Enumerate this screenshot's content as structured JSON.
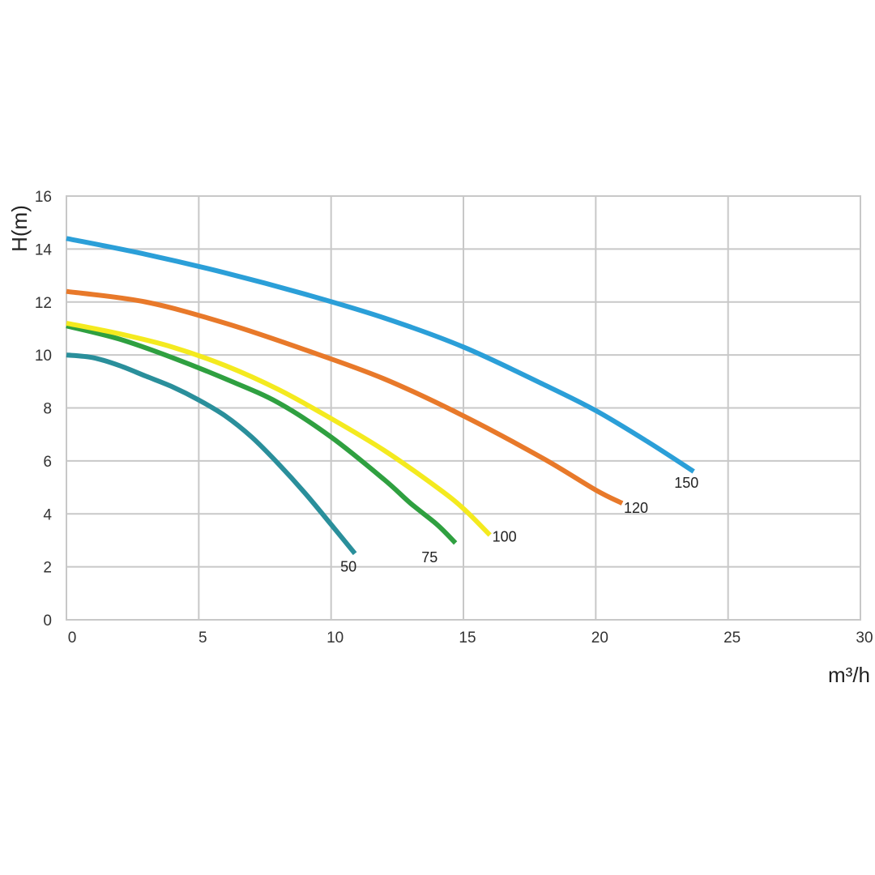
{
  "chart_data": {
    "type": "line",
    "xlabel": "m³/h",
    "ylabel": "H(m)",
    "xlim": [
      0,
      30
    ],
    "ylim": [
      0,
      16
    ],
    "xticks": [
      "0",
      "5",
      "10",
      "15",
      "20",
      "25",
      "30"
    ],
    "yticks": [
      "0",
      "2",
      "4",
      "6",
      "8",
      "10",
      "12",
      "14",
      "16"
    ],
    "grid": true,
    "series": [
      {
        "name": "50",
        "color": "#2a8f9b",
        "x": [
          0,
          1,
          2,
          3,
          4,
          5,
          6,
          7,
          8,
          9,
          10,
          10.9
        ],
        "y": [
          10.0,
          9.9,
          9.6,
          9.2,
          8.8,
          8.3,
          7.7,
          6.9,
          5.9,
          4.8,
          3.6,
          2.5
        ]
      },
      {
        "name": "75",
        "color": "#2fa040",
        "x": [
          0,
          2,
          4,
          6,
          8,
          10,
          12,
          13,
          14,
          14.7
        ],
        "y": [
          11.1,
          10.6,
          9.9,
          9.1,
          8.2,
          6.9,
          5.3,
          4.4,
          3.6,
          2.9
        ]
      },
      {
        "name": "100",
        "color": "#f4ea1f",
        "x": [
          0,
          2,
          4,
          6,
          8,
          10,
          12,
          14,
          15,
          16
        ],
        "y": [
          11.2,
          10.8,
          10.3,
          9.6,
          8.7,
          7.6,
          6.4,
          5.0,
          4.2,
          3.2
        ]
      },
      {
        "name": "120",
        "color": "#e8792a",
        "x": [
          0,
          3,
          6,
          9,
          12,
          15,
          18,
          20,
          21
        ],
        "y": [
          12.4,
          12.0,
          11.2,
          10.2,
          9.1,
          7.7,
          6.1,
          4.9,
          4.4
        ]
      },
      {
        "name": "150",
        "color": "#2b9fd8",
        "x": [
          0,
          3,
          6,
          9,
          12,
          15,
          18,
          20,
          22,
          23.7
        ],
        "y": [
          14.4,
          13.8,
          13.1,
          12.3,
          11.4,
          10.3,
          8.9,
          7.9,
          6.7,
          5.6
        ]
      }
    ]
  }
}
